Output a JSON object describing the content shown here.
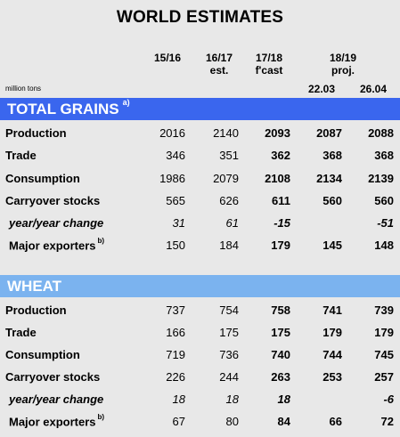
{
  "title": "WORLD ESTIMATES",
  "headers": {
    "y1": "15/16",
    "y2": "16/17",
    "y2_sub": "est.",
    "y3": "17/18",
    "y3_sub": "f'cast",
    "y4": "18/19",
    "y4_sub": "proj.",
    "d1": "22.03",
    "d2": "26.04"
  },
  "units": "million tons",
  "sections": [
    {
      "title": "TOTAL GRAINS",
      "note": "a)",
      "rows": [
        {
          "label": "Production",
          "values": [
            "2016",
            "2140",
            "2093",
            "2087",
            "2088"
          ]
        },
        {
          "label": "Trade",
          "values": [
            "346",
            "351",
            "362",
            "368",
            "368"
          ]
        },
        {
          "label": "Consumption",
          "values": [
            "1986",
            "2079",
            "2108",
            "2134",
            "2139"
          ]
        },
        {
          "label": "Carryover stocks",
          "values": [
            "565",
            "626",
            "611",
            "560",
            "560"
          ]
        },
        {
          "label": "year/year change",
          "values": [
            "31",
            "61",
            "-15",
            "",
            "-51"
          ]
        },
        {
          "label": "Major exporters",
          "note": "b)",
          "values": [
            "150",
            "184",
            "179",
            "145",
            "148"
          ]
        }
      ]
    },
    {
      "title": "WHEAT",
      "note": "",
      "rows": [
        {
          "label": "Production",
          "values": [
            "737",
            "754",
            "758",
            "741",
            "739"
          ]
        },
        {
          "label": "Trade",
          "values": [
            "166",
            "175",
            "175",
            "179",
            "179"
          ]
        },
        {
          "label": "Consumption",
          "values": [
            "719",
            "736",
            "740",
            "744",
            "745"
          ]
        },
        {
          "label": "Carryover stocks",
          "values": [
            "226",
            "244",
            "263",
            "253",
            "257"
          ]
        },
        {
          "label": "year/year change",
          "values": [
            "18",
            "18",
            "18",
            "",
            "-6"
          ]
        },
        {
          "label": "Major exporters",
          "note": "b)",
          "values": [
            "67",
            "80",
            "84",
            "66",
            "72"
          ]
        }
      ]
    }
  ],
  "colors": {
    "grains_band": "#3a66ee",
    "wheat_band": "#7bb3ef",
    "background": "#e8e8e8"
  }
}
